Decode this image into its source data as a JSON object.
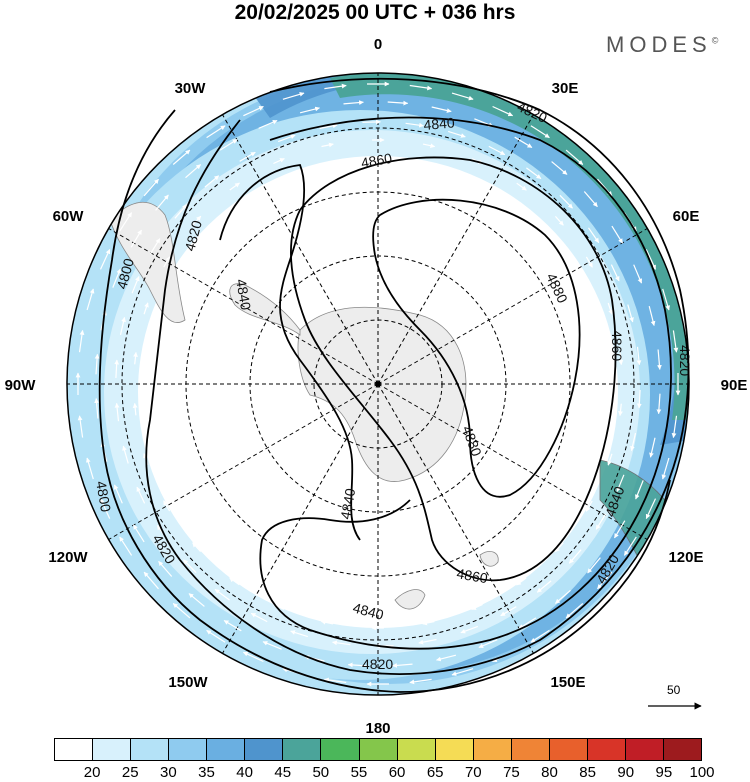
{
  "title": "20/02/2025  00 UTC  + 036 hrs",
  "brand": "MODES",
  "brand_mark": "©",
  "longitude_labels": [
    "0",
    "30E",
    "60E",
    "90E",
    "120E",
    "150E",
    "180",
    "150W",
    "120W",
    "90W",
    "60W",
    "30W"
  ],
  "contours": {
    "levels": [
      4800,
      4820,
      4840,
      4860,
      4880
    ],
    "labels": [
      {
        "text": "4800",
        "lon_label": "80W"
      },
      {
        "text": "4800",
        "lon_label": "110W"
      },
      {
        "text": "4820",
        "lon_label": "70W"
      },
      {
        "text": "4820",
        "lon_label": "25E"
      },
      {
        "text": "4820",
        "lon_label": "90E"
      },
      {
        "text": "4820",
        "lon_label": "125E"
      },
      {
        "text": "4820",
        "lon_label": "130W"
      },
      {
        "text": "4820",
        "lon_label": "180"
      },
      {
        "text": "4840",
        "lon_label": "10E"
      },
      {
        "text": "4840",
        "lon_label": "75W"
      },
      {
        "text": "4840",
        "lon_label": "170E"
      },
      {
        "text": "4840",
        "lon_label": "110E"
      },
      {
        "text": "4840",
        "lon_label": "155W"
      },
      {
        "text": "4860",
        "lon_label": "5E"
      },
      {
        "text": "4860",
        "lon_label": "80E"
      },
      {
        "text": "4860",
        "lon_label": "140E"
      },
      {
        "text": "4880",
        "lon_label": "55E"
      },
      {
        "text": "4880",
        "lon_label": "115E"
      }
    ]
  },
  "wind_reference": {
    "value": "50"
  },
  "colorbar": {
    "labels": [
      "20",
      "25",
      "30",
      "35",
      "40",
      "45",
      "50",
      "55",
      "60",
      "65",
      "70",
      "75",
      "80",
      "85",
      "90",
      "95",
      "100"
    ],
    "colors": [
      "#ffffff",
      "#d8f1fc",
      "#b4e2f7",
      "#8fcbef",
      "#6aafe1",
      "#4f94cd",
      "#4ba49a",
      "#4bb75a",
      "#84c64b",
      "#c9dc4f",
      "#f5dc55",
      "#f5ad45",
      "#ef8436",
      "#e8602c",
      "#d83428",
      "#c01e26",
      "#9d1b1e"
    ]
  }
}
